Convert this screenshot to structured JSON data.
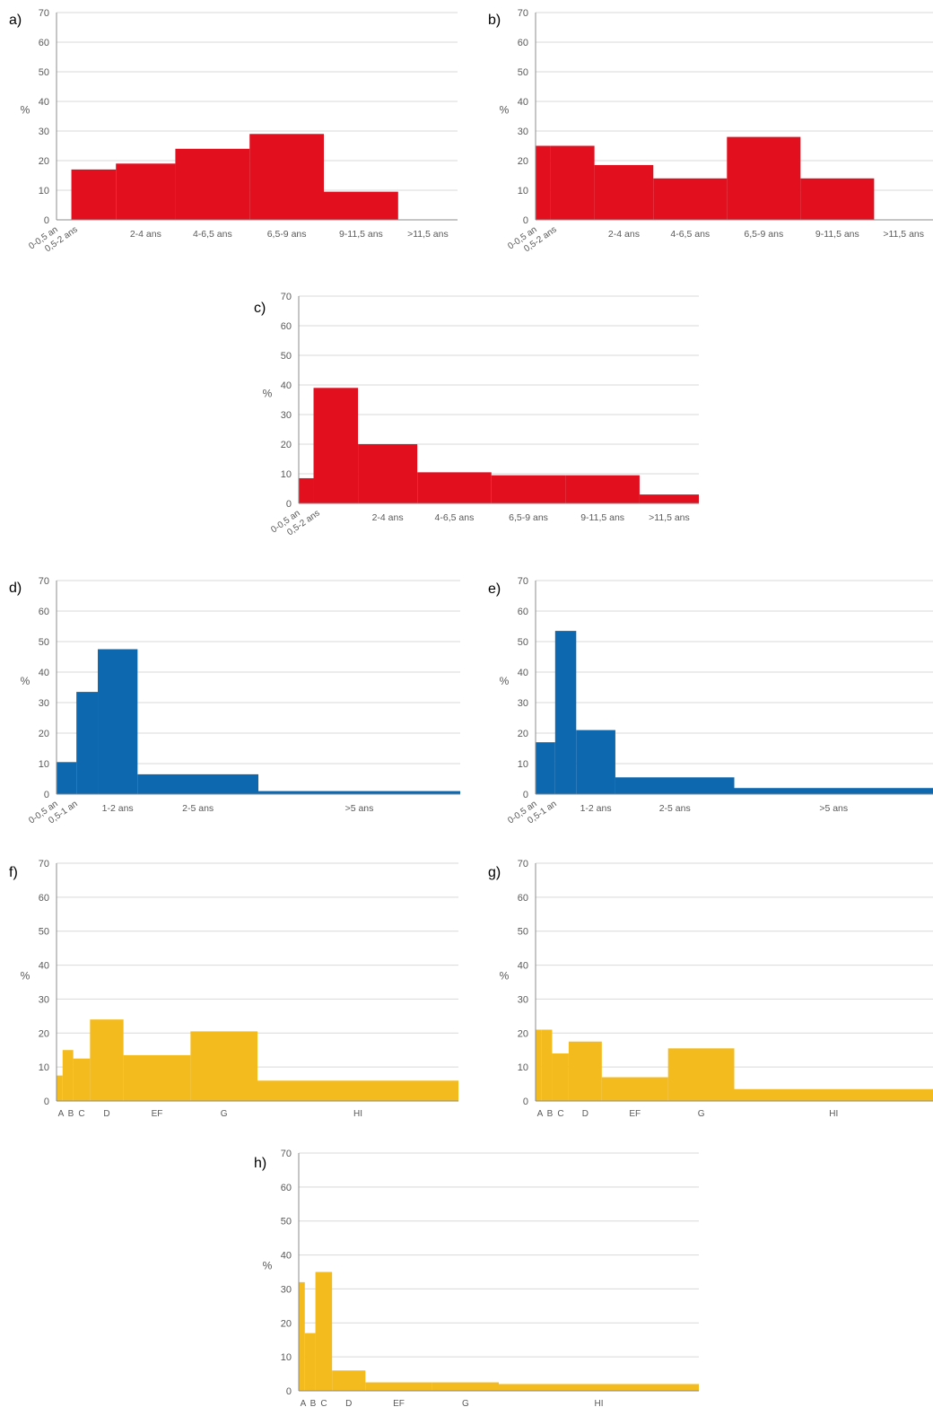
{
  "colors": {
    "red": "#e20f1e",
    "blue": "#0d68b0",
    "yellow": "#f4bb1f",
    "grid": "#d9d9d9",
    "axis": "#8c8c8c",
    "text": "#595959"
  },
  "chart_data": [
    {
      "panel": "a)",
      "type": "bar",
      "ylabel": "%",
      "ylim": [
        0,
        70
      ],
      "yticks": [
        0,
        10,
        20,
        30,
        40,
        50,
        60,
        70
      ],
      "grid": true,
      "color": "red",
      "xlim": [
        0,
        13.5
      ],
      "bins": [
        {
          "label": "0-0,5 an",
          "from": 0,
          "to": 0.5,
          "value": 0,
          "rotated": true
        },
        {
          "label": "0,5-2 ans",
          "from": 0.5,
          "to": 2,
          "value": 17,
          "rotated": true
        },
        {
          "label": "2-4 ans",
          "from": 2,
          "to": 4,
          "value": 19
        },
        {
          "label": "4-6,5 ans",
          "from": 4,
          "to": 6.5,
          "value": 24
        },
        {
          "label": "6,5-9 ans",
          "from": 6.5,
          "to": 9,
          "value": 29
        },
        {
          "label": "9-11,5 ans",
          "from": 9,
          "to": 11.5,
          "value": 9.5
        },
        {
          "label": ">11,5 ans",
          "from": 11.5,
          "to": 13.5,
          "value": 0
        }
      ]
    },
    {
      "panel": "b)",
      "type": "bar",
      "ylabel": "%",
      "ylim": [
        0,
        70
      ],
      "yticks": [
        0,
        10,
        20,
        30,
        40,
        50,
        60,
        70
      ],
      "grid": true,
      "color": "red",
      "xlim": [
        0,
        13.5
      ],
      "bins": [
        {
          "label": "0-0,5 an",
          "from": 0,
          "to": 0.5,
          "value": 25,
          "rotated": true
        },
        {
          "label": "0,5-2 ans",
          "from": 0.5,
          "to": 2,
          "value": 25,
          "rotated": true
        },
        {
          "label": "2-4 ans",
          "from": 2,
          "to": 4,
          "value": 18.5
        },
        {
          "label": "4-6,5 ans",
          "from": 4,
          "to": 6.5,
          "value": 14
        },
        {
          "label": "6,5-9 ans",
          "from": 6.5,
          "to": 9,
          "value": 28
        },
        {
          "label": "9-11,5 ans",
          "from": 9,
          "to": 11.5,
          "value": 14
        },
        {
          "label": ">11,5 ans",
          "from": 11.5,
          "to": 13.5,
          "value": 0
        }
      ]
    },
    {
      "panel": "c)",
      "type": "bar",
      "ylabel": "%",
      "ylim": [
        0,
        70
      ],
      "yticks": [
        0,
        10,
        20,
        30,
        40,
        50,
        60,
        70
      ],
      "grid": true,
      "color": "red",
      "xlim": [
        0,
        13.5
      ],
      "bins": [
        {
          "label": "0-0,5 an",
          "from": 0,
          "to": 0.5,
          "value": 8.5,
          "rotated": true
        },
        {
          "label": "0,5-2 ans",
          "from": 0.5,
          "to": 2,
          "value": 39,
          "rotated": true
        },
        {
          "label": "2-4 ans",
          "from": 2,
          "to": 4,
          "value": 20
        },
        {
          "label": "4-6,5 ans",
          "from": 4,
          "to": 6.5,
          "value": 10.5
        },
        {
          "label": "6,5-9 ans",
          "from": 6.5,
          "to": 9,
          "value": 9.5
        },
        {
          "label": "9-11,5 ans",
          "from": 9,
          "to": 11.5,
          "value": 9.5
        },
        {
          "label": ">11,5 ans",
          "from": 11.5,
          "to": 13.5,
          "value": 3
        }
      ]
    },
    {
      "panel": "d)",
      "type": "bar",
      "ylabel": "%",
      "ylim": [
        0,
        70
      ],
      "yticks": [
        0,
        10,
        20,
        30,
        40,
        50,
        60,
        70
      ],
      "grid": true,
      "color": "blue",
      "xlim": [
        0,
        13.2
      ],
      "bins": [
        {
          "label": "0-0,5 an",
          "from": 0,
          "to": 0.65,
          "value": 10.5,
          "rotated": true
        },
        {
          "label": "0,5-1 an",
          "from": 0.65,
          "to": 1.35,
          "value": 33.5,
          "rotated": true
        },
        {
          "label": "1-2 ans",
          "from": 1.35,
          "to": 2.65,
          "value": 47.5
        },
        {
          "label": "2-5 ans",
          "from": 2.65,
          "to": 6.6,
          "value": 6.5
        },
        {
          "label": ">5 ans",
          "from": 6.6,
          "to": 13.2,
          "value": 1
        }
      ]
    },
    {
      "panel": "e)",
      "type": "bar",
      "ylabel": "%",
      "ylim": [
        0,
        70
      ],
      "yticks": [
        0,
        10,
        20,
        30,
        40,
        50,
        60,
        70
      ],
      "grid": true,
      "color": "blue",
      "xlim": [
        0,
        13.2
      ],
      "bins": [
        {
          "label": "0-0,5 an",
          "from": 0,
          "to": 0.65,
          "value": 17,
          "rotated": true
        },
        {
          "label": "0,5-1 an",
          "from": 0.65,
          "to": 1.35,
          "value": 53.5,
          "rotated": true
        },
        {
          "label": "1-2 ans",
          "from": 1.35,
          "to": 2.65,
          "value": 21
        },
        {
          "label": "2-5 ans",
          "from": 2.65,
          "to": 6.6,
          "value": 5.5
        },
        {
          "label": ">5 ans",
          "from": 6.6,
          "to": 13.2,
          "value": 2
        }
      ]
    },
    {
      "panel": "f)",
      "type": "bar",
      "ylabel": "%",
      "ylim": [
        0,
        70
      ],
      "yticks": [
        0,
        10,
        20,
        30,
        40,
        50,
        60,
        70
      ],
      "grid": true,
      "color": "yellow",
      "xlim": [
        0,
        13.2
      ],
      "bins": [
        {
          "label": "A",
          "from": 0,
          "to": 0.2,
          "value": 7.5
        },
        {
          "label": "B",
          "from": 0.2,
          "to": 0.55,
          "value": 15
        },
        {
          "label": "C",
          "from": 0.55,
          "to": 1.1,
          "value": 12.5
        },
        {
          "label": "D",
          "from": 1.1,
          "to": 2.2,
          "value": 24
        },
        {
          "label": "EF",
          "from": 2.2,
          "to": 4.4,
          "value": 13.5
        },
        {
          "label": "G",
          "from": 4.4,
          "to": 6.6,
          "value": 20.5
        },
        {
          "label": "HI",
          "from": 6.6,
          "to": 13.2,
          "value": 6
        }
      ]
    },
    {
      "panel": "g)",
      "type": "bar",
      "ylabel": "%",
      "ylim": [
        0,
        70
      ],
      "yticks": [
        0,
        10,
        20,
        30,
        40,
        50,
        60,
        70
      ],
      "grid": true,
      "color": "yellow",
      "xlim": [
        0,
        13.2
      ],
      "bins": [
        {
          "label": "A",
          "from": 0,
          "to": 0.2,
          "value": 21
        },
        {
          "label": "B",
          "from": 0.2,
          "to": 0.55,
          "value": 21
        },
        {
          "label": "C",
          "from": 0.55,
          "to": 1.1,
          "value": 14
        },
        {
          "label": "D",
          "from": 1.1,
          "to": 2.2,
          "value": 17.5
        },
        {
          "label": "EF",
          "from": 2.2,
          "to": 4.4,
          "value": 7
        },
        {
          "label": "G",
          "from": 4.4,
          "to": 6.6,
          "value": 15.5
        },
        {
          "label": "HI",
          "from": 6.6,
          "to": 13.2,
          "value": 3.5
        }
      ]
    },
    {
      "panel": "h)",
      "type": "bar",
      "ylabel": "%",
      "ylim": [
        0,
        70
      ],
      "yticks": [
        0,
        10,
        20,
        30,
        40,
        50,
        60,
        70
      ],
      "grid": true,
      "color": "yellow",
      "xlim": [
        0,
        13.2
      ],
      "bins": [
        {
          "label": "A",
          "from": 0,
          "to": 0.2,
          "value": 32
        },
        {
          "label": "B",
          "from": 0.2,
          "to": 0.55,
          "value": 17
        },
        {
          "label": "C",
          "from": 0.55,
          "to": 1.1,
          "value": 35
        },
        {
          "label": "D",
          "from": 1.1,
          "to": 2.2,
          "value": 6
        },
        {
          "label": "EF",
          "from": 2.2,
          "to": 4.4,
          "value": 2.5
        },
        {
          "label": "G",
          "from": 4.4,
          "to": 6.6,
          "value": 2.5
        },
        {
          "label": "HI",
          "from": 6.6,
          "to": 13.2,
          "value": 2
        }
      ]
    }
  ]
}
